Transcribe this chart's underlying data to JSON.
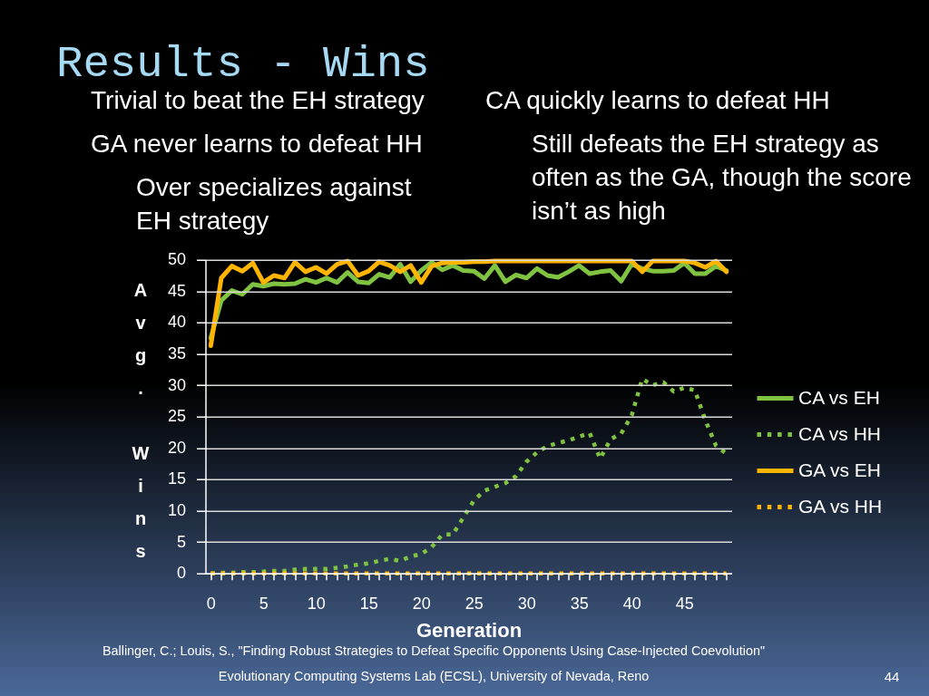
{
  "chart_data": {
    "type": "line",
    "title": "Results - Wins",
    "xlabel": "Generation",
    "ylabel": "Avg. Wins",
    "categories": [
      "0",
      null,
      null,
      null,
      null,
      "5",
      null,
      null,
      null,
      null,
      "10",
      null,
      null,
      null,
      null,
      "15",
      null,
      null,
      null,
      null,
      "20",
      null,
      null,
      null,
      null,
      "25",
      null,
      null,
      null,
      null,
      "30",
      null,
      null,
      null,
      null,
      "35",
      null,
      null,
      null,
      null,
      "40",
      null,
      null,
      null,
      null,
      "45",
      null,
      null,
      null,
      null
    ],
    "ylim": [
      0,
      50
    ],
    "yticks": [
      0,
      5,
      10,
      15,
      20,
      25,
      30,
      35,
      40,
      45,
      50
    ],
    "grid": "y",
    "legend": "right",
    "marker": "none",
    "series": [
      {
        "name": "CA vs EH",
        "color": "#80c341",
        "line_style": "solid",
        "values": [
          37.5,
          43.5,
          45.1,
          44.5,
          46.1,
          45.8,
          46.2,
          46.1,
          46.2,
          46.9,
          46.4,
          47.1,
          46.4,
          48.0,
          46.5,
          46.3,
          47.7,
          47.2,
          49.3,
          46.5,
          48.3,
          49.6,
          48.4,
          49.1,
          48.3,
          48.2,
          47.0,
          49.1,
          46.5,
          47.6,
          47.1,
          48.6,
          47.5,
          47.2,
          48.1,
          49.1,
          47.8,
          48.1,
          48.3,
          46.6,
          49.3,
          48.6,
          48.2,
          48.2,
          48.3,
          49.5,
          47.8,
          47.8,
          49.0,
          48.3
        ]
      },
      {
        "name": "CA vs HH",
        "color": "#80c341",
        "line_style": "dotted",
        "values": [
          0,
          0.1,
          0.1,
          0.2,
          0.2,
          0.3,
          0.4,
          0.4,
          0.6,
          0.7,
          0.7,
          0.7,
          0.9,
          1.1,
          1.4,
          1.6,
          2.0,
          2.3,
          2.0,
          2.7,
          3.1,
          4.2,
          6.2,
          6.2,
          8.9,
          11.6,
          13.2,
          13.8,
          14.4,
          15.5,
          17.8,
          19.3,
          20.3,
          20.8,
          21.2,
          21.8,
          22.4,
          18.3,
          21.4,
          22.3,
          25.2,
          31.0,
          30.0,
          30.5,
          29.0,
          29.6,
          29.2,
          24.4,
          20.4,
          19.1
        ]
      },
      {
        "name": "GA vs EH",
        "color": "#ffb400",
        "line_style": "solid",
        "values": [
          36.3,
          47.1,
          49.0,
          48.2,
          49.5,
          46.4,
          47.5,
          47.1,
          49.6,
          48.1,
          48.8,
          47.8,
          49.3,
          49.8,
          47.5,
          48.2,
          49.7,
          49.1,
          48.1,
          49.1,
          46.4,
          49.0,
          49.5,
          49.6,
          49.6,
          49.7,
          49.7,
          49.8,
          49.8,
          49.8,
          49.8,
          49.8,
          49.8,
          49.8,
          49.8,
          49.8,
          49.8,
          49.8,
          49.8,
          49.8,
          49.8,
          48.1,
          49.8,
          49.8,
          49.8,
          49.8,
          49.5,
          48.8,
          49.8,
          48.1
        ]
      },
      {
        "name": "GA vs HH",
        "color": "#ffb400",
        "line_style": "dotted",
        "values": [
          0,
          0,
          0,
          0,
          0,
          0,
          0,
          0,
          0,
          0,
          0,
          0,
          0,
          0,
          0,
          0,
          0,
          0,
          0,
          0,
          0,
          0,
          0,
          0,
          0,
          0,
          0,
          0,
          0,
          0,
          0,
          0,
          0,
          0,
          0,
          0,
          0,
          0,
          0,
          0,
          0,
          0,
          0,
          0,
          0,
          0,
          0,
          0,
          0,
          0
        ]
      }
    ],
    "annotations": [
      "Trivial to beat the EH strategy",
      "GA never learns to defeat HH",
      "Over specializes against EH strategy",
      "CA quickly learns to defeat HH",
      "Still defeats the EH strategy as often as the GA, though the score isn’t as high",
      "Ballinger, C.; Louis, S., \"Finding Robust Strategies to Defeat Specific Opponents Using Case-Injected Coevolution\"",
      "Evolutionary Computing Systems Lab (ECSL), University of Nevada, Reno",
      "44"
    ]
  }
}
